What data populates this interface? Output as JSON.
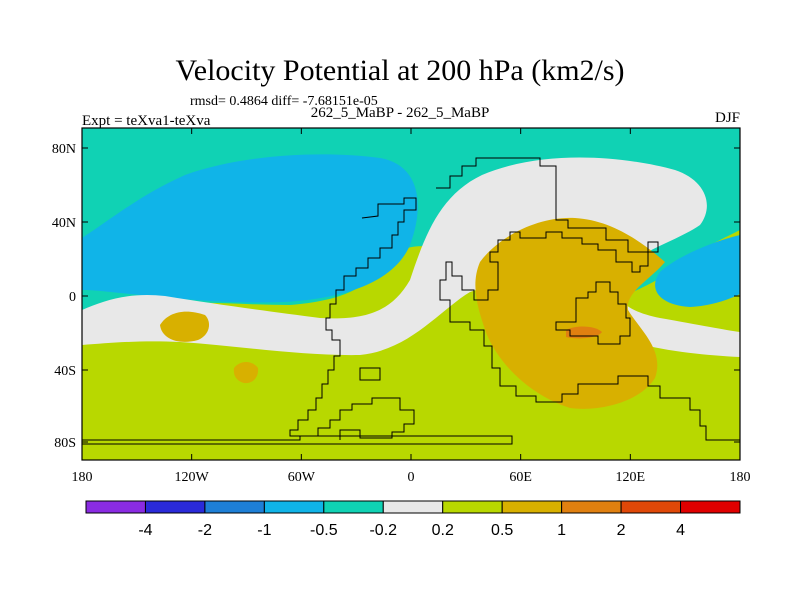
{
  "chart_data": {
    "type": "heatmap",
    "title": "Velocity Potential at 200 hPa (km2/s)",
    "stats": "rmsd= 0.4864 diff= -7.68151e-05",
    "left_label": "Expt = teXva1-teXva",
    "center_label": "262_5_MaBP - 262_5_MaBP",
    "right_label": "DJF",
    "x_ticks": [
      "180",
      "120W",
      "60W",
      "0",
      "60E",
      "120E",
      "180"
    ],
    "y_ticks": [
      "80N",
      "40N",
      "0",
      "40S",
      "80S"
    ],
    "colorbar": {
      "colors": [
        "#8a2be2",
        "#2a2ad9",
        "#1e7fd6",
        "#10b4e8",
        "#10d2b4",
        "#e8e8e8",
        "#b8d800",
        "#d8b000",
        "#e08010",
        "#e04808",
        "#e00000"
      ],
      "labels": [
        "-4",
        "-2",
        "-1",
        "-0.5",
        "-0.2",
        "0.2",
        "0.5",
        "1",
        "2",
        "4"
      ]
    },
    "regions": {
      "north_band": "-0.5 to -0.2",
      "northwest_low": "-1 to -0.5",
      "east_low": "-1 to -0.5",
      "neutral_band": "-0.2 to 0.2",
      "southern_field": "0.2 to 0.5",
      "central_high": "0.5 to 1",
      "core_max": "2 to 4"
    }
  },
  "colors": {
    "outline": "#000000",
    "background": "#ffffff"
  }
}
